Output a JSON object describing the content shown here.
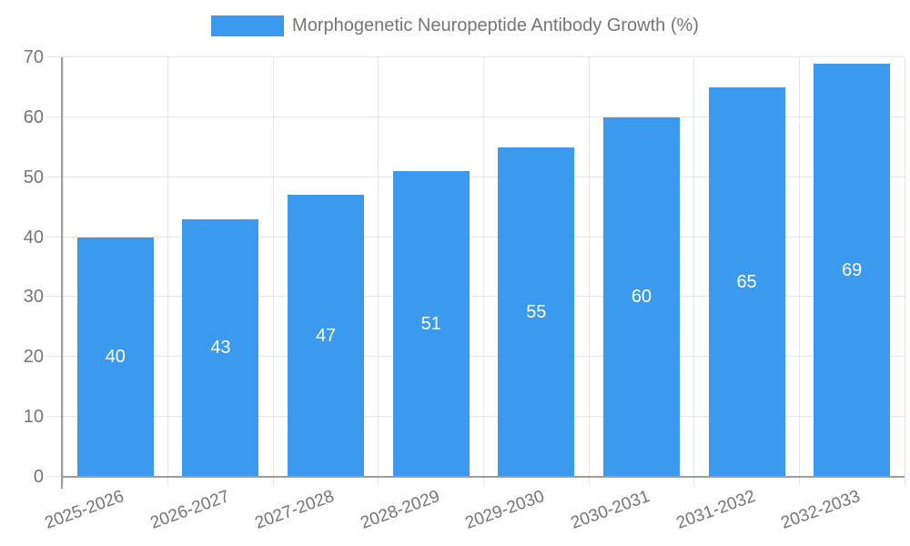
{
  "legend": {
    "items": [
      {
        "label": "Morphogenetic Neuropeptide Antibody Growth (%)",
        "color": "#3B99EE"
      }
    ]
  },
  "chart_data": {
    "type": "bar",
    "title": "Morphogenetic Neuropeptide Antibody Growth (%)",
    "categories": [
      "2025-2026",
      "2026-2027",
      "2027-2028",
      "2028-2029",
      "2029-2030",
      "2030-2031",
      "2031-2032",
      "2032-2033"
    ],
    "values": [
      40,
      43,
      47,
      51,
      55,
      60,
      65,
      69
    ],
    "value_labels": [
      "40",
      "43",
      "47",
      "51",
      "55",
      "60",
      "65",
      "69"
    ],
    "xlabel": "",
    "ylabel": "",
    "ylim": [
      0,
      70
    ],
    "yticks": [
      0,
      10,
      20,
      30,
      40,
      50,
      60,
      70
    ],
    "grid": true,
    "legend_position": "top",
    "colors": {
      "bar": "#3B99EE",
      "value_label": "#FFFFFF",
      "grid": "#E6E6E6",
      "axis": "#9E9E9E",
      "text": "#757575",
      "background": "#FFFFFF"
    }
  }
}
